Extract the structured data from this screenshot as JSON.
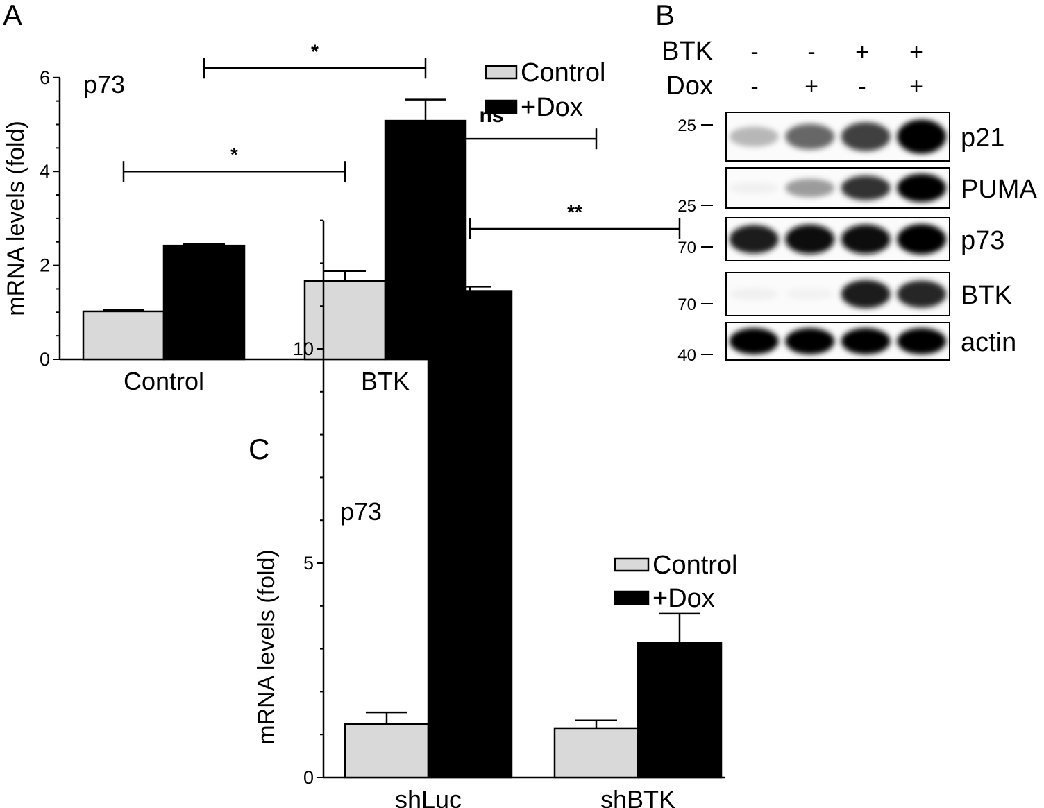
{
  "panels": {
    "A": {
      "letter": "A"
    },
    "B": {
      "letter": "B"
    },
    "C": {
      "letter": "C"
    }
  },
  "chart_data": [
    {
      "panel": "A",
      "type": "bar",
      "inset_label": "p73",
      "ylabel": "mRNA levels (fold)",
      "ylim": [
        0,
        6
      ],
      "y_ticks": [
        0,
        2,
        4,
        6
      ],
      "categories": [
        "Control",
        "BTK"
      ],
      "series": [
        {
          "name": "Control",
          "color": "#d9d9d9",
          "values": [
            1.02,
            1.67
          ],
          "errors": [
            0.03,
            0.21
          ]
        },
        {
          "name": "+Dox",
          "color": "#000000",
          "values": [
            2.42,
            5.08
          ],
          "errors": [
            0.03,
            0.45
          ]
        }
      ],
      "significance": [
        {
          "label": "*",
          "from": "Control/Control",
          "to": "BTK/Control",
          "level": 4.0
        },
        {
          "label": "*",
          "from": "Control/+Dox",
          "to": "BTK/+Dox",
          "level": 6.2
        }
      ],
      "legend": "top-right"
    },
    {
      "panel": "B",
      "type": "table",
      "header_rows": [
        {
          "label": "BTK",
          "values": [
            "-",
            "-",
            "+",
            "+"
          ]
        },
        {
          "label": "Dox",
          "values": [
            "-",
            "+",
            "-",
            "+"
          ]
        }
      ],
      "blots": [
        {
          "label": "p21",
          "marker": "25",
          "intensity": [
            0.35,
            0.6,
            0.75,
            1.0
          ]
        },
        {
          "label": "PUMA",
          "marker": "25",
          "intensity": [
            0.05,
            0.45,
            0.8,
            1.0
          ]
        },
        {
          "label": "p73",
          "marker": "70",
          "intensity": [
            0.9,
            0.95,
            0.95,
            1.0
          ]
        },
        {
          "label": "BTK",
          "marker": "70",
          "intensity": [
            0.05,
            0.03,
            0.9,
            0.85
          ]
        },
        {
          "label": "actin",
          "marker": "40",
          "intensity": [
            1.0,
            1.0,
            1.0,
            1.0
          ]
        }
      ]
    },
    {
      "panel": "C",
      "type": "bar",
      "inset_label": "p73",
      "ylabel": "mRNA levels (fold)",
      "ylim": [
        0,
        13
      ],
      "y_ticks": [
        0,
        5,
        10
      ],
      "categories": [
        "shLuc",
        "shBTK"
      ],
      "series": [
        {
          "name": "Control",
          "color": "#d9d9d9",
          "values": [
            1.25,
            1.15
          ],
          "errors": [
            0.27,
            0.18
          ]
        },
        {
          "name": "+Dox",
          "color": "#000000",
          "values": [
            11.35,
            3.15
          ],
          "errors": [
            0.1,
            0.67
          ]
        }
      ],
      "significance": [
        {
          "label": "ns",
          "from": "shLuc/Control",
          "to": "shBTK/Control",
          "level": 14.9
        },
        {
          "label": "**",
          "from": "shLuc/+Dox",
          "to": "shBTK/+Dox",
          "level": 12.8
        }
      ],
      "legend": "right"
    }
  ]
}
